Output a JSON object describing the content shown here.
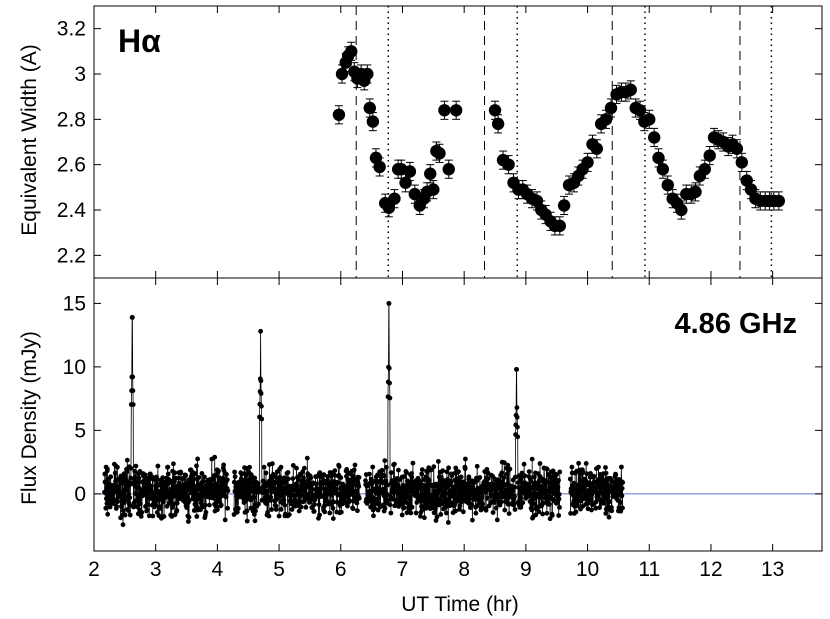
{
  "chart_data": [
    {
      "type": "scatter",
      "title": "Hα",
      "xlabel": "",
      "ylabel": "Equivalent Width  (A)",
      "xlim": [
        2,
        13.8
      ],
      "ylim": [
        2.1,
        3.3
      ],
      "yticks": [
        2.2,
        2.4,
        2.6,
        2.8,
        3,
        3.2
      ],
      "ytick_labels": [
        "2.2",
        "2.4",
        "2.6",
        "2.8",
        "3",
        "3.2"
      ],
      "error_bar": 0.04,
      "dashed_lines_x": [
        6.25,
        8.33,
        10.4,
        12.47
      ],
      "dotted_lines_x": [
        6.77,
        8.86,
        10.93,
        12.98
      ],
      "series": [
        {
          "x": [
            5.97,
            6.02,
            6.08,
            6.12,
            6.17,
            6.22,
            6.27,
            6.33,
            6.38,
            6.43,
            6.47,
            6.52,
            6.57,
            6.63,
            6.72,
            6.78,
            6.87,
            6.93,
            6.98,
            7.05,
            7.12,
            7.2,
            7.28,
            7.35,
            7.4,
            7.45,
            7.5,
            7.55,
            7.6,
            7.68,
            7.75,
            7.87
          ],
          "y": [
            2.82,
            3.0,
            3.05,
            3.08,
            3.1,
            3.01,
            2.98,
            3.0,
            2.97,
            3.0,
            2.85,
            2.79,
            2.63,
            2.59,
            2.43,
            2.41,
            2.45,
            2.58,
            2.58,
            2.52,
            2.57,
            2.47,
            2.42,
            2.45,
            2.48,
            2.56,
            2.49,
            2.66,
            2.65,
            2.84,
            2.58,
            2.84
          ]
        },
        {
          "x": [
            8.5,
            8.55,
            8.63,
            8.72,
            8.8,
            8.88,
            8.95,
            9.02,
            9.1,
            9.18,
            9.25,
            9.32,
            9.4,
            9.47,
            9.55,
            9.62,
            9.7,
            9.78,
            9.85,
            9.92,
            10.0,
            10.08,
            10.15,
            10.22,
            10.3,
            10.38,
            10.47,
            10.55,
            10.62,
            10.7,
            10.78,
            10.85,
            10.92,
            11.0,
            11.08,
            11.15,
            11.22,
            11.3,
            11.38,
            11.45,
            11.52,
            11.6,
            11.68,
            11.75,
            11.82,
            11.9,
            11.98,
            12.05,
            12.12,
            12.2,
            12.28,
            12.35,
            12.42,
            12.5,
            12.58,
            12.65,
            12.72,
            12.8,
            12.88,
            12.95,
            13.02,
            13.1
          ],
          "y": [
            2.84,
            2.78,
            2.62,
            2.6,
            2.52,
            2.49,
            2.49,
            2.47,
            2.45,
            2.44,
            2.4,
            2.38,
            2.35,
            2.33,
            2.33,
            2.42,
            2.51,
            2.52,
            2.55,
            2.58,
            2.61,
            2.69,
            2.67,
            2.78,
            2.8,
            2.85,
            2.91,
            2.92,
            2.92,
            2.93,
            2.85,
            2.84,
            2.79,
            2.8,
            2.72,
            2.63,
            2.58,
            2.51,
            2.45,
            2.43,
            2.4,
            2.47,
            2.47,
            2.48,
            2.55,
            2.58,
            2.64,
            2.72,
            2.71,
            2.7,
            2.68,
            2.69,
            2.67,
            2.61,
            2.53,
            2.49,
            2.45,
            2.44,
            2.44,
            2.44,
            2.44,
            2.44
          ]
        }
      ]
    },
    {
      "type": "line",
      "title": "4.86 GHz",
      "xlabel": "UT Time  (hr)",
      "ylabel": "Flux Density  (mJy)",
      "xlim": [
        2,
        13.8
      ],
      "ylim": [
        -4.5,
        17
      ],
      "xticks": [
        2,
        3,
        4,
        5,
        6,
        7,
        8,
        9,
        10,
        11,
        12,
        13
      ],
      "xtick_labels": [
        "2",
        "3",
        "4",
        "5",
        "6",
        "7",
        "8",
        "9",
        "10",
        "11",
        "12",
        "13"
      ],
      "yticks": [
        0,
        5,
        10,
        15
      ],
      "ytick_labels": [
        "0",
        "5",
        "10",
        "15"
      ],
      "baseline": 0,
      "noise_segments": [
        [
          2.17,
          4.17
        ],
        [
          4.27,
          6.3
        ],
        [
          6.4,
          9.55
        ],
        [
          9.72,
          10.57
        ]
      ],
      "noise_level": 1.3,
      "spikes": [
        {
          "x": 2.62,
          "peak": 13.9
        },
        {
          "x": 4.7,
          "peak": 12.8
        },
        {
          "x": 6.78,
          "peak": 15.0
        },
        {
          "x": 8.85,
          "peak": 9.8
        }
      ]
    }
  ],
  "colors": {
    "points": "#000000",
    "baseline": "#5a6fd0",
    "axes": "#000000"
  }
}
